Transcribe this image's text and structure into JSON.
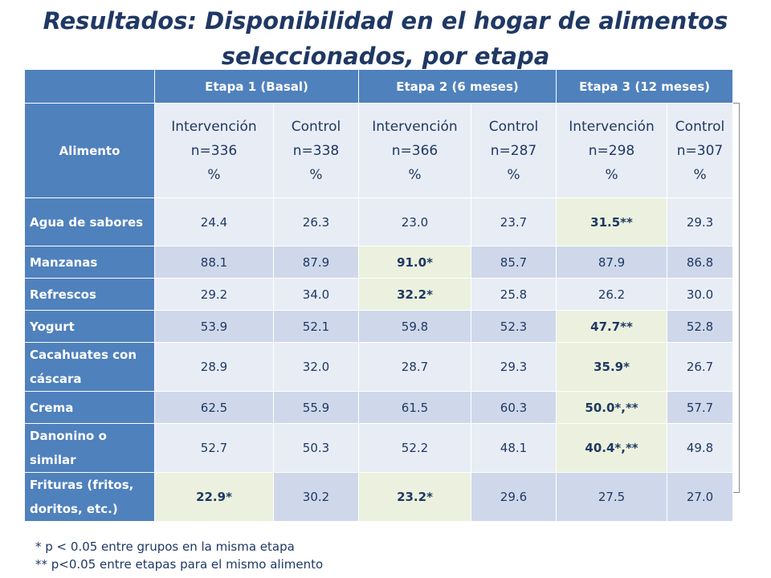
{
  "title_line1": "Resultados: Disponibilidad en el hogar de alimentos",
  "title_line2": "seleccionados, por etapa",
  "stages": [
    "Etapa 1 (Basal)",
    "Etapa 2 (6 meses)",
    "Etapa 3 (12 meses)"
  ],
  "alimento_label": "Alimento",
  "groups": [
    {
      "name": "Intervención",
      "n": "n=336",
      "unit": "%"
    },
    {
      "name": "Control",
      "n": "n=338",
      "unit": "%"
    },
    {
      "name": "Intervención",
      "n": "n=366",
      "unit": "%"
    },
    {
      "name": "Control",
      "n": "n=287",
      "unit": "%"
    },
    {
      "name": "Intervención",
      "n": "n=298",
      "unit": "%"
    },
    {
      "name": "Control",
      "n": "n=307",
      "unit": "%"
    }
  ],
  "rows": [
    {
      "label": "Agua de sabores",
      "values": [
        "24.4",
        "26.3",
        "23.0",
        "23.7",
        "31.5**",
        "29.3"
      ],
      "highlight": [
        4
      ]
    },
    {
      "label": "Manzanas",
      "values": [
        "88.1",
        "87.9",
        "91.0*",
        "85.7",
        "87.9",
        "86.8"
      ],
      "highlight": [
        2
      ]
    },
    {
      "label": "Refrescos",
      "values": [
        "29.2",
        "34.0",
        "32.2*",
        "25.8",
        "26.2",
        "30.0"
      ],
      "highlight": [
        2
      ]
    },
    {
      "label": "Yogurt",
      "values": [
        "53.9",
        "52.1",
        "59.8",
        "52.3",
        "47.7**",
        "52.8"
      ],
      "highlight": [
        4
      ]
    },
    {
      "label": "Cacahuates con cáscara",
      "values": [
        "28.9",
        "32.0",
        "28.7",
        "29.3",
        "35.9*",
        "26.7"
      ],
      "highlight": [
        4
      ]
    },
    {
      "label": "Crema",
      "values": [
        "62.5",
        "55.9",
        "61.5",
        "60.3",
        "50.0*,**",
        "57.7"
      ],
      "highlight": [
        4
      ]
    },
    {
      "label": "Danonino o similar",
      "values": [
        "52.7",
        "50.3",
        "52.2",
        "48.1",
        "40.4*,**",
        "49.8"
      ],
      "highlight": [
        4
      ]
    },
    {
      "label": "Frituras (fritos, doritos, etc.)",
      "values": [
        "22.9*",
        "30.2",
        "23.2*",
        "29.6",
        "27.5",
        "27.0"
      ],
      "highlight": [
        0,
        2
      ]
    }
  ],
  "notes": [
    "* p < 0.05 entre grupos en la misma etapa",
    "** p<0.05 entre etapas para el mismo alimento"
  ],
  "colors": {
    "header_blue": "#4f81bd",
    "title_navy": "#1f3864",
    "cell_dark": "#cfd8ea",
    "cell_light": "#e8edf5",
    "highlight_green": "#ebf1de"
  }
}
